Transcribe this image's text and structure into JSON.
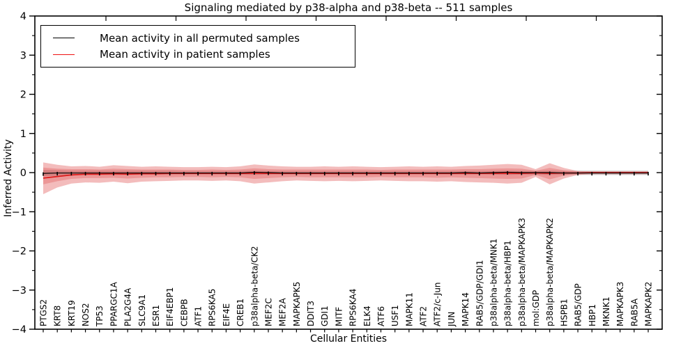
{
  "chart_data": {
    "type": "line",
    "title": "Signaling mediated by p38-alpha and p38-beta -- 511 samples",
    "xlabel": "Cellular Entities",
    "ylabel": "Inferred Activity",
    "ylim": [
      -4,
      4
    ],
    "yticks": [
      4,
      3,
      2,
      1,
      0,
      -1,
      -2,
      -3,
      -4
    ],
    "yminor_step": 0.5,
    "grid": false,
    "legend_position": "upper left",
    "categories": [
      "PTGS2",
      "KRT8",
      "KRT19",
      "NOS2",
      "TP53",
      "PPARGC1A",
      "PLA2G4A",
      "SLC9A1",
      "ESR1",
      "EIF4EBP1",
      "CEBPB",
      "ATF1",
      "RPS6KA5",
      "EIF4E",
      "CREB1",
      "p38alpha-beta/CK2",
      "MEF2C",
      "MEF2A",
      "MAPKAPK5",
      "DDIT3",
      "GDI1",
      "MITF",
      "RPS6KA4",
      "ELK4",
      "ATF6",
      "USF1",
      "MAPK11",
      "ATF2",
      "ATF2/c-Jun",
      "JUN",
      "MAPK14",
      "RAB5/GDP/GDI1",
      "p38alpha-beta/MNK1",
      "p38alpha-beta/HBP1",
      "p38alpha-beta/MAPKAPK3",
      "mol:GDP",
      "p38alpha-beta/MAPKAPK2",
      "HSPB1",
      "RAB5/GDP",
      "HBP1",
      "MKNK1",
      "MAPKAPK3",
      "RAB5A",
      "MAPKAPK2"
    ],
    "series": [
      {
        "name": "Mean activity in all permuted samples",
        "color": "#000000",
        "values": [
          -0.02,
          -0.01,
          -0.01,
          -0.01,
          -0.01,
          -0.01,
          -0.01,
          -0.01,
          -0.01,
          -0.01,
          -0.01,
          -0.01,
          -0.01,
          -0.01,
          -0.01,
          0.01,
          0.0,
          -0.01,
          -0.01,
          -0.01,
          -0.01,
          -0.01,
          -0.01,
          -0.01,
          -0.01,
          -0.01,
          -0.01,
          -0.01,
          -0.01,
          -0.01,
          0.0,
          -0.01,
          0.0,
          0.01,
          0.0,
          0.0,
          0.0,
          -0.01,
          -0.01,
          -0.01,
          -0.01,
          -0.01,
          -0.01,
          -0.01
        ]
      },
      {
        "name": "Mean activity in patient samples",
        "color": "#dd1c1c",
        "values": [
          -0.14,
          -0.1,
          -0.06,
          -0.04,
          -0.04,
          -0.03,
          -0.04,
          -0.03,
          -0.03,
          -0.02,
          -0.02,
          -0.02,
          -0.02,
          -0.02,
          -0.02,
          -0.02,
          -0.02,
          -0.02,
          -0.02,
          -0.02,
          -0.02,
          -0.02,
          -0.02,
          -0.02,
          -0.02,
          -0.02,
          -0.02,
          -0.02,
          -0.02,
          -0.02,
          -0.02,
          -0.02,
          -0.02,
          -0.02,
          -0.02,
          -0.01,
          -0.02,
          -0.01,
          -0.01,
          0.0,
          0.0,
          0.0,
          0.0,
          0.0
        ]
      }
    ],
    "bands": {
      "patient_outer": {
        "color": "#e05050",
        "opacity": 0.38,
        "top": [
          0.26,
          0.2,
          0.16,
          0.17,
          0.15,
          0.19,
          0.17,
          0.15,
          0.16,
          0.15,
          0.14,
          0.14,
          0.15,
          0.14,
          0.16,
          0.21,
          0.18,
          0.16,
          0.15,
          0.15,
          0.16,
          0.15,
          0.16,
          0.15,
          0.14,
          0.15,
          0.16,
          0.15,
          0.16,
          0.15,
          0.17,
          0.18,
          0.2,
          0.22,
          0.2,
          0.09,
          0.24,
          0.12,
          0.04,
          0.03,
          0.03,
          0.03,
          0.03,
          0.03
        ],
        "bottom": [
          -0.55,
          -0.38,
          -0.28,
          -0.25,
          -0.26,
          -0.23,
          -0.27,
          -0.23,
          -0.22,
          -0.21,
          -0.2,
          -0.2,
          -0.21,
          -0.2,
          -0.22,
          -0.28,
          -0.25,
          -0.22,
          -0.2,
          -0.21,
          -0.22,
          -0.21,
          -0.22,
          -0.21,
          -0.2,
          -0.21,
          -0.22,
          -0.22,
          -0.23,
          -0.22,
          -0.24,
          -0.25,
          -0.26,
          -0.28,
          -0.26,
          -0.11,
          -0.3,
          -0.15,
          -0.06,
          -0.04,
          -0.04,
          -0.04,
          -0.04,
          -0.04
        ]
      },
      "patient_inner": {
        "color": "#e05050",
        "opacity": 0.34,
        "top": [
          0.13,
          0.1,
          0.09,
          0.09,
          0.08,
          0.1,
          0.09,
          0.08,
          0.08,
          0.08,
          0.07,
          0.07,
          0.08,
          0.07,
          0.08,
          0.11,
          0.09,
          0.08,
          0.08,
          0.08,
          0.08,
          0.08,
          0.08,
          0.08,
          0.07,
          0.08,
          0.08,
          0.08,
          0.08,
          0.08,
          0.09,
          0.09,
          0.1,
          0.11,
          0.1,
          0.05,
          0.12,
          0.06,
          0.02,
          0.02,
          0.02,
          0.02,
          0.02,
          0.02
        ],
        "bottom": [
          -0.3,
          -0.22,
          -0.16,
          -0.14,
          -0.14,
          -0.13,
          -0.15,
          -0.13,
          -0.12,
          -0.12,
          -0.11,
          -0.11,
          -0.12,
          -0.11,
          -0.12,
          -0.16,
          -0.14,
          -0.12,
          -0.11,
          -0.12,
          -0.12,
          -0.12,
          -0.12,
          -0.12,
          -0.11,
          -0.12,
          -0.12,
          -0.12,
          -0.13,
          -0.12,
          -0.13,
          -0.14,
          -0.15,
          -0.16,
          -0.15,
          -0.06,
          -0.17,
          -0.08,
          -0.03,
          -0.02,
          -0.02,
          -0.02,
          -0.02,
          -0.02
        ]
      },
      "permuted_gray": {
        "color": "#bbbbbb",
        "opacity": 0.8,
        "top": [
          0.07,
          0.06,
          0.05,
          0.05,
          0.05,
          0.05,
          0.05,
          0.05,
          0.05,
          0.05,
          0.04,
          0.04,
          0.04,
          0.04,
          0.04,
          0.05,
          0.04,
          0.04,
          0.04,
          0.04,
          0.04,
          0.04,
          0.04,
          0.04,
          0.04,
          0.04,
          0.04,
          0.04,
          0.04,
          0.04,
          0.04,
          0.04,
          0.04,
          0.05,
          0.04,
          0.04,
          0.05,
          0.04,
          0.05,
          0.05,
          0.05,
          0.05,
          0.05,
          0.05
        ],
        "bottom": [
          -0.09,
          -0.08,
          -0.06,
          -0.06,
          -0.06,
          -0.06,
          -0.06,
          -0.05,
          -0.05,
          -0.05,
          -0.05,
          -0.05,
          -0.05,
          -0.05,
          -0.05,
          -0.06,
          -0.05,
          -0.05,
          -0.05,
          -0.05,
          -0.05,
          -0.05,
          -0.05,
          -0.05,
          -0.05,
          -0.05,
          -0.05,
          -0.05,
          -0.05,
          -0.05,
          -0.05,
          -0.05,
          -0.05,
          -0.06,
          -0.05,
          -0.05,
          -0.06,
          -0.05,
          -0.06,
          -0.06,
          -0.06,
          -0.06,
          -0.06,
          -0.06
        ]
      }
    },
    "error_cap_halfwidth": 0.045
  },
  "legend": {
    "items": [
      {
        "label": "Mean activity in all permuted samples",
        "color": "#000000"
      },
      {
        "label": "Mean activity in patient samples",
        "color": "#ee1111"
      }
    ]
  }
}
